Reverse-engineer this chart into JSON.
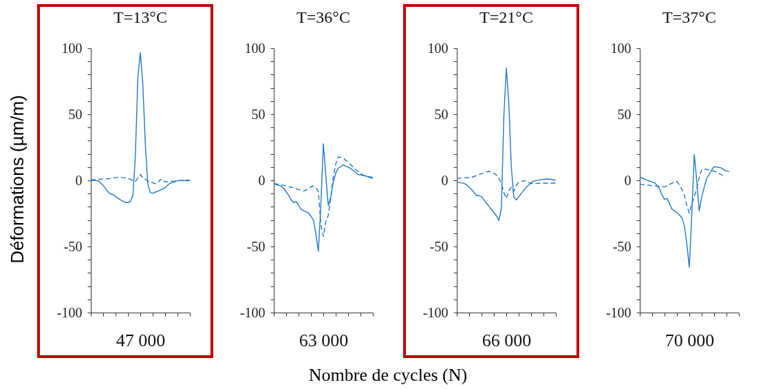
{
  "chart_data": [
    {
      "type": "line",
      "title": "T=13°C",
      "xlabel": "47 000",
      "ylabel": "Déformations (µm/m)",
      "ylim": [
        -100,
        100
      ],
      "tick_labels": "y",
      "categories": [
        null,
        null,
        null,
        null,
        null,
        null,
        null,
        null,
        null,
        null,
        null,
        null,
        null,
        null,
        null,
        null,
        null,
        null,
        null,
        null,
        null,
        null,
        null,
        null,
        null,
        null,
        null,
        null,
        null,
        null,
        null,
        null,
        null,
        null,
        null,
        null,
        null,
        null,
        null,
        null,
        null
      ],
      "yticks": [
        -100,
        {
          "value": -90,
          "label": null
        },
        {
          "value": -80,
          "label": null
        },
        {
          "value": -70,
          "label": null
        },
        {
          "value": -60,
          "label": null
        },
        -50,
        {
          "value": -40,
          "label": null
        },
        {
          "value": -30,
          "label": null
        },
        {
          "value": -20,
          "label": null
        },
        {
          "value": -10,
          "label": null
        },
        0,
        {
          "value": 10,
          "label": null
        },
        {
          "value": 20,
          "label": null
        },
        {
          "value": 30,
          "label": null
        },
        {
          "value": 40,
          "label": null
        },
        50,
        {
          "value": 60,
          "label": null
        },
        {
          "value": 70,
          "label": null
        },
        {
          "value": 80,
          "label": null
        },
        {
          "value": 90,
          "label": null
        },
        100
      ],
      "series": [
        {
          "color": "#1f78c8",
          "line_style": "solid",
          "values": [
            0,
            -0.1,
            -0.2,
            -0.3,
            -2.1,
            -3.8,
            -6.3,
            -8.8,
            -10.3,
            -10.8,
            -12.2,
            -13.6,
            -14.8,
            -15.8,
            -16.7,
            -16.8,
            -15.9,
            -11.4,
            19,
            78,
            96.6,
            73,
            28,
            -2.4,
            -9.3,
            -9.7,
            -9,
            -8.3,
            -7.4,
            -6.5,
            -5.6,
            -3.8,
            -2.2,
            -1.6,
            -0.9,
            -0.3,
            -0.2,
            -0.2,
            -0.1,
            -0.1,
            0
          ]
        },
        {
          "color": "#1f78c8",
          "line_style": "dashed",
          "values": [
            0.3,
            0.5,
            0.6,
            0.8,
            1,
            1.1,
            1.2,
            1.3,
            1.4,
            1.7,
            2,
            2.3,
            2.3,
            2,
            1.8,
            1.5,
            0.9,
            -0.3,
            -0.8,
            1.9,
            4.5,
            1.9,
            0.8,
            -0.3,
            -1,
            -1.8,
            -2.5,
            -2.1,
            0.6,
            0.9,
            -1.2,
            -1,
            -0.8,
            -0.6,
            -0.5,
            -0.3,
            -0.1,
            0,
            0.1,
            0.1,
            0.2
          ]
        }
      ]
    },
    {
      "type": "line",
      "title": "T=36°C",
      "xlabel": "63 000",
      "annotations": [
        "Nombre de cycles (N)"
      ],
      "ylim": [
        -100,
        100
      ],
      "tick_labels": "y",
      "categories": [
        null,
        null,
        null,
        null,
        null,
        null,
        null,
        null,
        null,
        null,
        null,
        null,
        null,
        null,
        null,
        null,
        null,
        null,
        null,
        null,
        null,
        null,
        null,
        null,
        null,
        null,
        null,
        null,
        null,
        null,
        null,
        null,
        null,
        null,
        null,
        null,
        null,
        null,
        null,
        null,
        null
      ],
      "yticks": [
        -100,
        {
          "value": -90,
          "label": null
        },
        {
          "value": -80,
          "label": null
        },
        {
          "value": -70,
          "label": null
        },
        {
          "value": -60,
          "label": null
        },
        -50,
        {
          "value": -40,
          "label": null
        },
        {
          "value": -30,
          "label": null
        },
        {
          "value": -20,
          "label": null
        },
        {
          "value": -10,
          "label": null
        },
        0,
        {
          "value": 10,
          "label": null
        },
        {
          "value": 20,
          "label": null
        },
        {
          "value": 30,
          "label": null
        },
        {
          "value": 40,
          "label": null
        },
        50,
        {
          "value": 60,
          "label": null
        },
        {
          "value": 70,
          "label": null
        },
        {
          "value": 80,
          "label": null
        },
        {
          "value": 90,
          "label": null
        },
        100
      ],
      "series": [
        {
          "color": "#1f78c8",
          "line_style": "solid",
          "values": [
            -2.6,
            -3.2,
            -3.8,
            -4.4,
            -6,
            -8.6,
            -11.3,
            -14.7,
            -16.8,
            -15.9,
            -18.5,
            -22.1,
            -22.9,
            -23.8,
            -24.6,
            -27.2,
            -30.2,
            -40.6,
            -53.6,
            -19,
            27.7,
            3.3,
            -19.2,
            -12.5,
            -1.4,
            5.4,
            9.1,
            10.4,
            11.8,
            10.9,
            10,
            9,
            7.6,
            6.1,
            4.5,
            4.2,
            3.8,
            3.4,
            2.7,
            2.1,
            1.4
          ]
        },
        {
          "color": "#1f78c8",
          "line_style": "dashed",
          "values": [
            -2.4,
            -2.7,
            -3,
            -3.3,
            -3.7,
            -4.1,
            -4.7,
            -5.2,
            -5.8,
            -6.3,
            -6.8,
            -7.5,
            -8.1,
            -7.3,
            -6.5,
            -4.8,
            -4.3,
            -5.6,
            -8.4,
            -33.4,
            -42.3,
            -31.1,
            -26.5,
            -13.6,
            2.2,
            12.3,
            17.8,
            17.4,
            16.9,
            15.3,
            13.8,
            12,
            10.1,
            8.3,
            6.8,
            5.4,
            4.1,
            3.3,
            3,
            2.6,
            2.3
          ]
        }
      ]
    },
    {
      "type": "line",
      "title": "T=21°C",
      "xlabel": "66 000",
      "ylim": [
        -100,
        100
      ],
      "tick_labels": "y",
      "categories": [
        null,
        null,
        null,
        null,
        null,
        null,
        null,
        null,
        null,
        null,
        null,
        null,
        null,
        null,
        null,
        null,
        null,
        null,
        null,
        null,
        null,
        null,
        null,
        null,
        null,
        null,
        null,
        null,
        null,
        null,
        null,
        null,
        null,
        null,
        null,
        null,
        null,
        null,
        null,
        null,
        null
      ],
      "yticks": [
        -100,
        {
          "value": -90,
          "label": null
        },
        {
          "value": -80,
          "label": null
        },
        {
          "value": -70,
          "label": null
        },
        {
          "value": -60,
          "label": null
        },
        -50,
        {
          "value": -40,
          "label": null
        },
        {
          "value": -30,
          "label": null
        },
        {
          "value": -20,
          "label": null
        },
        {
          "value": -10,
          "label": null
        },
        0,
        {
          "value": 10,
          "label": null
        },
        {
          "value": 20,
          "label": null
        },
        {
          "value": 30,
          "label": null
        },
        {
          "value": 40,
          "label": null
        },
        50,
        {
          "value": 60,
          "label": null
        },
        {
          "value": 70,
          "label": null
        },
        {
          "value": 80,
          "label": null
        },
        {
          "value": 90,
          "label": null
        },
        100
      ],
      "series": [
        {
          "color": "#1f78c8",
          "line_style": "solid",
          "values": [
            -1.2,
            -1.6,
            -1.9,
            -2.3,
            -3.4,
            -5.2,
            -7,
            -9.1,
            -11.6,
            -11.4,
            -12.5,
            -14.9,
            -17.3,
            -19.6,
            -22,
            -24.3,
            -26.8,
            -30.3,
            -21.2,
            48.4,
            85,
            59,
            10.7,
            -12.6,
            -14.8,
            -12.5,
            -10,
            -7.6,
            -5.3,
            -3.5,
            -1.8,
            -0.6,
            -0.2,
            0.2,
            0.6,
            0.8,
            0.9,
            1,
            0.8,
            0.5,
            0.2
          ]
        },
        {
          "color": "#1f78c8",
          "line_style": "dashed",
          "values": [
            1.4,
            1.6,
            1.8,
            2,
            2.1,
            2.1,
            2.3,
            3,
            3.7,
            4.4,
            5.1,
            5.7,
            6.4,
            6.9,
            6.2,
            5.4,
            4.1,
            1.6,
            -2.5,
            -9.2,
            -13.8,
            -7.7,
            -5,
            -8.3,
            -3.9,
            -1.4,
            -0.9,
            -0.4,
            -0.3,
            -1.6,
            -2.4,
            -2.3,
            -2.3,
            -2.2,
            -2.1,
            -2.1,
            -2.1,
            -2.1,
            -2.1,
            -2.1,
            -2.1
          ]
        }
      ]
    },
    {
      "type": "line",
      "title": "T=37°C",
      "xlabel": "70 000",
      "ylim": [
        -100,
        100
      ],
      "tick_labels": "y",
      "categories": [
        null,
        null,
        null,
        null,
        null,
        null,
        null,
        null,
        null,
        null,
        null,
        null,
        null,
        null,
        null,
        null,
        null,
        null,
        null,
        null,
        null,
        null,
        null,
        null,
        null,
        null,
        null,
        null,
        null,
        null,
        null,
        null,
        null,
        null,
        null,
        null,
        null,
        null,
        null,
        null,
        null
      ],
      "yticks": [
        -100,
        {
          "value": -90,
          "label": null
        },
        {
          "value": -80,
          "label": null
        },
        {
          "value": -70,
          "label": null
        },
        {
          "value": -60,
          "label": null
        },
        -50,
        {
          "value": -40,
          "label": null
        },
        {
          "value": -30,
          "label": null
        },
        {
          "value": -20,
          "label": null
        },
        {
          "value": -10,
          "label": null
        },
        0,
        {
          "value": 10,
          "label": null
        },
        {
          "value": 20,
          "label": null
        },
        {
          "value": 30,
          "label": null
        },
        {
          "value": 40,
          "label": null
        },
        50,
        {
          "value": 60,
          "label": null
        },
        {
          "value": 70,
          "label": null
        },
        {
          "value": 80,
          "label": null
        },
        {
          "value": 90,
          "label": null
        },
        100
      ],
      "series": [
        {
          "color": "#1f78c8",
          "line_style": "solid",
          "values": [
            2.5,
            1.7,
            0.9,
            0.1,
            -0.5,
            -1.2,
            -1.8,
            -3.9,
            -6.4,
            -11.3,
            -14.4,
            -13.6,
            -17.4,
            -21.8,
            -23.1,
            -24.4,
            -26.2,
            -28.3,
            -34.3,
            -48.3,
            -65.7,
            -25.5,
            19.6,
            -0.3,
            -23.1,
            -12.6,
            -5.3,
            1.3,
            4.5,
            7.8,
            10.4,
            10.1,
            9.8,
            9.3,
            8.1,
            7.1,
            6.6,
            null,
            null,
            null,
            null
          ]
        },
        {
          "color": "#1f78c8",
          "line_style": "dashed",
          "values": [
            -3,
            -3.2,
            -3.4,
            -3.6,
            -3.8,
            -4,
            -4.1,
            -4.3,
            -4.4,
            -4.7,
            -4.9,
            -4.1,
            -3.1,
            -2.2,
            -1.2,
            -0.8,
            -3.3,
            -6.9,
            -11.3,
            -19.2,
            -24.8,
            -17.6,
            -12.6,
            -6.2,
            2.1,
            8.4,
            8.5,
            8.4,
            7.8,
            7.4,
            6.9,
            6.3,
            5.3,
            4.3,
            3.3,
            null,
            null,
            null,
            null,
            null,
            null
          ]
        }
      ]
    }
  ]
}
